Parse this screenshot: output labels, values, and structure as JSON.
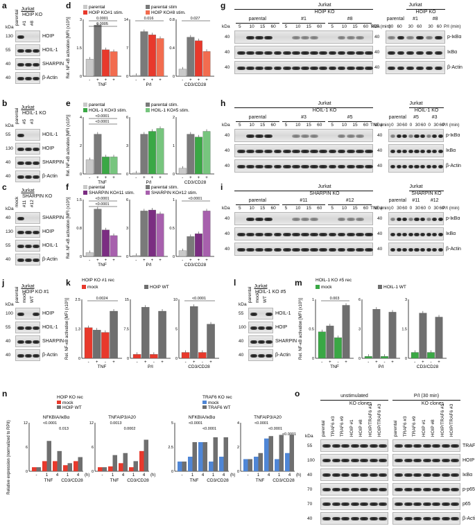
{
  "panel_labels": [
    "a",
    "b",
    "c",
    "d",
    "e",
    "f",
    "g",
    "h",
    "i",
    "j",
    "k",
    "l",
    "m",
    "n",
    "o"
  ],
  "blots": {
    "a": {
      "cell": "Jurkat",
      "group": "HOIP KO",
      "lanes": [
        "parental",
        "#1",
        "#8"
      ],
      "kda": [
        "130",
        "55",
        "40",
        "40"
      ],
      "proteins": [
        "HOIP",
        "HOIL-1",
        "SHARPIN",
        "β-Actin"
      ]
    },
    "b": {
      "cell": "Jurkat",
      "group": "HOIL-1 KO",
      "lanes": [
        "parental",
        "#5",
        "#3"
      ],
      "kda": [
        "55",
        "130",
        "40",
        "40"
      ],
      "proteins": [
        "HOIL-1",
        "HOIP",
        "SHARPIN",
        "β-Actin"
      ]
    },
    "c": {
      "cell": "Jurkat",
      "group": "SHARPIN KO",
      "lanes": [
        "mock",
        "#11",
        "#12"
      ],
      "kda": [
        "40",
        "130",
        "55",
        "40"
      ],
      "proteins": [
        "SHARPIN",
        "HOIP",
        "HOIL-1",
        "β-Actin"
      ]
    },
    "j": {
      "cell": "Jurkat",
      "group": "HOIP KO #1",
      "lanes": [
        "parental",
        "mock",
        "WT"
      ],
      "kda": [
        "100",
        "55",
        "40",
        "40"
      ],
      "proteins": [
        "HOIP",
        "HOIL-1",
        "SHARPIN",
        "β-Actin"
      ]
    },
    "l": {
      "cell": "Jurkat",
      "group": "HOIL-1 KO #5",
      "lanes": [
        "parental",
        "mock",
        "WT"
      ],
      "kda": [
        "55",
        "100",
        "40",
        "40"
      ],
      "proteins": [
        "HOIL-1",
        "HOIP",
        "SHARPIN",
        "β-Actin"
      ]
    },
    "g": {
      "cell": "Jurkat",
      "group": "HOIP KO",
      "left": {
        "groups": [
          "parental",
          "#1",
          "#8"
        ],
        "times": [
          "5",
          "10",
          "15",
          "60"
        ],
        "stim": "TNF (min)",
        "kda": [
          "40",
          "40",
          "40"
        ]
      },
      "right": {
        "groups": [
          "parental",
          "#1",
          "#8"
        ],
        "times": [
          "30",
          "60"
        ],
        "stim": "P/I (min)",
        "kda": [
          "40",
          "40",
          "40"
        ]
      },
      "proteins": [
        "p-IκBα",
        "IκBα",
        "β-Actin"
      ]
    },
    "h": {
      "cell": "Jurkat",
      "group": "HOIL-1 KO",
      "left": {
        "groups": [
          "parental",
          "#3",
          "#5"
        ],
        "times": [
          "5",
          "10",
          "15",
          "60"
        ],
        "stim": "TNF (min)",
        "kda": [
          "40",
          "40",
          "40"
        ]
      },
      "right": {
        "groups": [
          "parental",
          "#5",
          "#3"
        ],
        "times": [
          "0",
          "30",
          "60"
        ],
        "stim": "P/I (min)",
        "kda": [
          "40",
          "40",
          "40"
        ]
      },
      "proteins": [
        "p-IκBα",
        "IκBα",
        "β-Actin"
      ]
    },
    "i": {
      "cell": "Jurkat",
      "group": "SHARPIN KO",
      "left": {
        "groups": [
          "parental",
          "#11",
          "#12"
        ],
        "times": [
          "5",
          "10",
          "15",
          "60"
        ],
        "stim": "TNF (min)",
        "kda": [
          "40",
          "40",
          "40"
        ]
      },
      "right": {
        "groups": [
          "parental",
          "#11",
          "#12"
        ],
        "times": [
          "0",
          "30",
          "60"
        ],
        "stim": "P/I (min)",
        "kda": [
          "40",
          "40",
          "40"
        ]
      },
      "proteins": [
        "p-IκBα",
        "IκBα",
        "β-Actin"
      ]
    },
    "o": {
      "stim_groups": [
        "unstimulated",
        "P/I (30 min)"
      ],
      "subheader": "KO clones",
      "lanes": [
        "parental",
        "TRAF6 #3",
        "TRAF6 #9",
        "HOIP #1",
        "HOIP #8",
        "HOIP/TRAF6 #1",
        "HOIP/TRAF6 #3"
      ],
      "kda": [
        "55",
        "100",
        "40",
        "70",
        "70",
        "40"
      ],
      "proteins": [
        "TRAF6",
        "HOIP",
        "IκBα",
        "p-p65",
        "p65",
        "β-Actin"
      ]
    }
  },
  "kda_label": "kDa",
  "chart_data": [
    {
      "panel": "d",
      "type": "bar",
      "ylabel": "Rel. NF-κB activation [MFI (x10³)]",
      "ylim": [
        0,
        3
      ],
      "legend": [
        "parental",
        "parental stim",
        "HOIP KO#1 stim.",
        "HOIP KO#8 stim."
      ],
      "colors": [
        "#c9c9c9",
        "#7a7a7a",
        "#e8392c",
        "#f26c4f"
      ],
      "groups": [
        {
          "name": "TNF",
          "values": [
            0.9,
            2.7,
            1.4,
            1.3
          ],
          "ylim": [
            0,
            3
          ],
          "p": [
            "0.0001",
            "0.0005"
          ]
        },
        {
          "name": "P/I",
          "values": [
            0.2,
            11.0,
            10.2,
            9.3
          ],
          "ylim": [
            0,
            14
          ],
          "p": [
            "0.016"
          ]
        },
        {
          "name": "CD3/CD28",
          "values": [
            0.1,
            0.55,
            0.5,
            0.35
          ],
          "ylim": [
            0,
            0.8
          ],
          "p": [
            "0.027"
          ]
        }
      ]
    },
    {
      "panel": "e",
      "type": "bar",
      "ylabel": "Rel. NF-κB activation [MFI (x10³)]",
      "ylim": [
        0,
        3
      ],
      "legend": [
        "parental",
        "parental stim.",
        "HOIL-1 KO#3 stim.",
        "HOIL-1 KO#5 stim."
      ],
      "colors": [
        "#c9c9c9",
        "#7a7a7a",
        "#3aa845",
        "#77c57e"
      ],
      "groups": [
        {
          "name": "TNF",
          "values": [
            1.0,
            2.8,
            1.2,
            1.2
          ],
          "ylim": [
            0,
            4
          ],
          "p": [
            "<0.0001",
            "<0.0001"
          ]
        },
        {
          "name": "P/I",
          "values": [
            0.1,
            4.2,
            4.5,
            4.8
          ],
          "ylim": [
            0,
            6
          ],
          "p": []
        },
        {
          "name": "CD3/CD28",
          "values": [
            0.2,
            1.4,
            1.3,
            1.5
          ],
          "ylim": [
            0,
            2
          ],
          "p": []
        }
      ]
    },
    {
      "panel": "f",
      "type": "bar",
      "ylabel": "Rel. NF-κB activation [MFI (x10³)]",
      "ylim": [
        0,
        1.5
      ],
      "legend": [
        "parental",
        "parental stim.",
        "SHARPIN KO#11 stim.",
        "SHARPIN KO#12 stim."
      ],
      "colors": [
        "#c9c9c9",
        "#7a7a7a",
        "#7b2d82",
        "#a760ad"
      ],
      "groups": [
        {
          "name": "TNF",
          "values": [
            0.1,
            1.25,
            0.7,
            0.55
          ],
          "ylim": [
            0,
            1.5
          ],
          "p": [
            "<0.0001",
            "<0.0001"
          ]
        },
        {
          "name": "P/I",
          "values": [
            0.1,
            4.8,
            4.9,
            4.5
          ],
          "ylim": [
            0,
            6
          ],
          "p": []
        },
        {
          "name": "CD3/CD28",
          "values": [
            0.1,
            0.35,
            0.4,
            0.8
          ],
          "ylim": [
            0,
            1.0
          ],
          "p": [
            "<0.0001"
          ]
        }
      ]
    },
    {
      "panel": "k",
      "type": "bar",
      "title": "HOIP KO #1 rec",
      "ylabel": "Rel. NF-κB activation [MFI (x10³)]",
      "legend": [
        "mock",
        "HOIP WT"
      ],
      "colors": [
        "#e8392c",
        "#6f6f6f"
      ],
      "groups": [
        {
          "name": "TNF",
          "values": [
            1.3,
            1.2,
            1.1,
            2.0
          ],
          "ylim": [
            0,
            2.5
          ],
          "p": [
            "0.0024"
          ]
        },
        {
          "name": "P/I",
          "values": [
            1.0,
            13.0,
            1.0,
            12.0
          ],
          "ylim": [
            0,
            15
          ],
          "p": []
        },
        {
          "name": "CD3/CD28",
          "values": [
            1.0,
            8.8,
            1.0,
            5.8
          ],
          "ylim": [
            0,
            10
          ],
          "p": [
            "<0.0001"
          ]
        }
      ]
    },
    {
      "panel": "m",
      "type": "bar",
      "title": "HOIL-1 KO #5 rec",
      "ylabel": "Rel. NF-κB activation [MFI (x10³)]",
      "legend": [
        "mock",
        "HOIL-1 WT"
      ],
      "colors": [
        "#3aa845",
        "#6f6f6f"
      ],
      "groups": [
        {
          "name": "TNF",
          "values": [
            0.45,
            0.55,
            0.35,
            0.9
          ],
          "ylim": [
            0,
            1.0
          ],
          "p": [
            "0.003"
          ]
        },
        {
          "name": "P/I",
          "values": [
            0.2,
            5.0,
            0.2,
            4.7
          ],
          "ylim": [
            0,
            6
          ],
          "p": []
        },
        {
          "name": "CD3/CD28",
          "values": [
            0.3,
            2.3,
            0.3,
            2.1
          ],
          "ylim": [
            0,
            3
          ],
          "p": []
        }
      ]
    },
    {
      "panel": "n",
      "type": "bar",
      "ylabel": "Relative expression (normalized to RPII)",
      "subcharts": [
        {
          "title": "NFKBIA/IκBα",
          "group": "HOIP KO rec",
          "legend": [
            "mock",
            "HOIP WT"
          ],
          "colors": [
            "#e8392c",
            "#6f6f6f"
          ],
          "ylim": [
            0,
            12
          ],
          "categories": [
            "-",
            "1 TNF",
            "4 TNF",
            "1 CD3/CD28",
            "4 CD3/CD28"
          ],
          "mock": [
            1,
            2.5,
            2.5,
            1.5,
            2.5
          ],
          "wt": [
            1,
            7.5,
            5.0,
            2.0,
            3.5
          ],
          "p": [
            "<0.0001",
            "0.013"
          ]
        },
        {
          "title": "TNFAIP3/A20",
          "group": "HOIP KO rec",
          "legend": [
            "mock",
            "HOIP WT"
          ],
          "colors": [
            "#e8392c",
            "#6f6f6f"
          ],
          "ylim": [
            0,
            12
          ],
          "categories": [
            "-",
            "1 TNF",
            "4 TNF",
            "1 CD3/CD28",
            "4 CD3/CD28"
          ],
          "mock": [
            1,
            1.2,
            2.0,
            1.0,
            5.0
          ],
          "wt": [
            1,
            4.0,
            4.5,
            2.5,
            7.8
          ],
          "p": [
            "0.0013",
            "0.0002"
          ]
        },
        {
          "title": "NFKBIA/IκBα",
          "group": "TRAF6 KO rec",
          "legend": [
            "mock",
            "TRAF6 WT"
          ],
          "colors": [
            "#4f86d6",
            "#6f6f6f"
          ],
          "ylim": [
            0,
            5
          ],
          "categories": [
            "-",
            "1 TNF",
            "4 TNF",
            "1 CD3/CD28",
            "4 CD3/CD28"
          ],
          "mock": [
            1,
            1.5,
            3.0,
            1.0,
            1.5
          ],
          "wt": [
            1,
            3.0,
            3.0,
            3.5,
            3.5
          ],
          "p": [
            "<0.0001",
            "<0.0001"
          ]
        },
        {
          "title": "TNFAIP3/A20",
          "group": "TRAF6 KO rec",
          "legend": [
            "mock",
            "TRAF6 WT"
          ],
          "colors": [
            "#4f86d6",
            "#6f6f6f"
          ],
          "ylim": [
            0,
            4
          ],
          "categories": [
            "-",
            "1 TNF",
            "4 TNF",
            "1 CD3/CD28",
            "4 CD3/CD28"
          ],
          "mock": [
            1,
            1.2,
            2.7,
            1.0,
            1.5
          ],
          "wt": [
            1,
            1.5,
            2.9,
            3.0,
            3.0
          ],
          "p": [
            "<0.0001",
            "<0.0001",
            "<0.0001"
          ]
        }
      ]
    }
  ],
  "axis_ticks": {
    "pm": [
      "-",
      "+",
      "+",
      "+"
    ],
    "pm4": [
      "-",
      "+",
      "-",
      "+"
    ],
    "time": [
      "-",
      "1",
      "4",
      "1",
      "4"
    ],
    "hours": "(h)"
  }
}
